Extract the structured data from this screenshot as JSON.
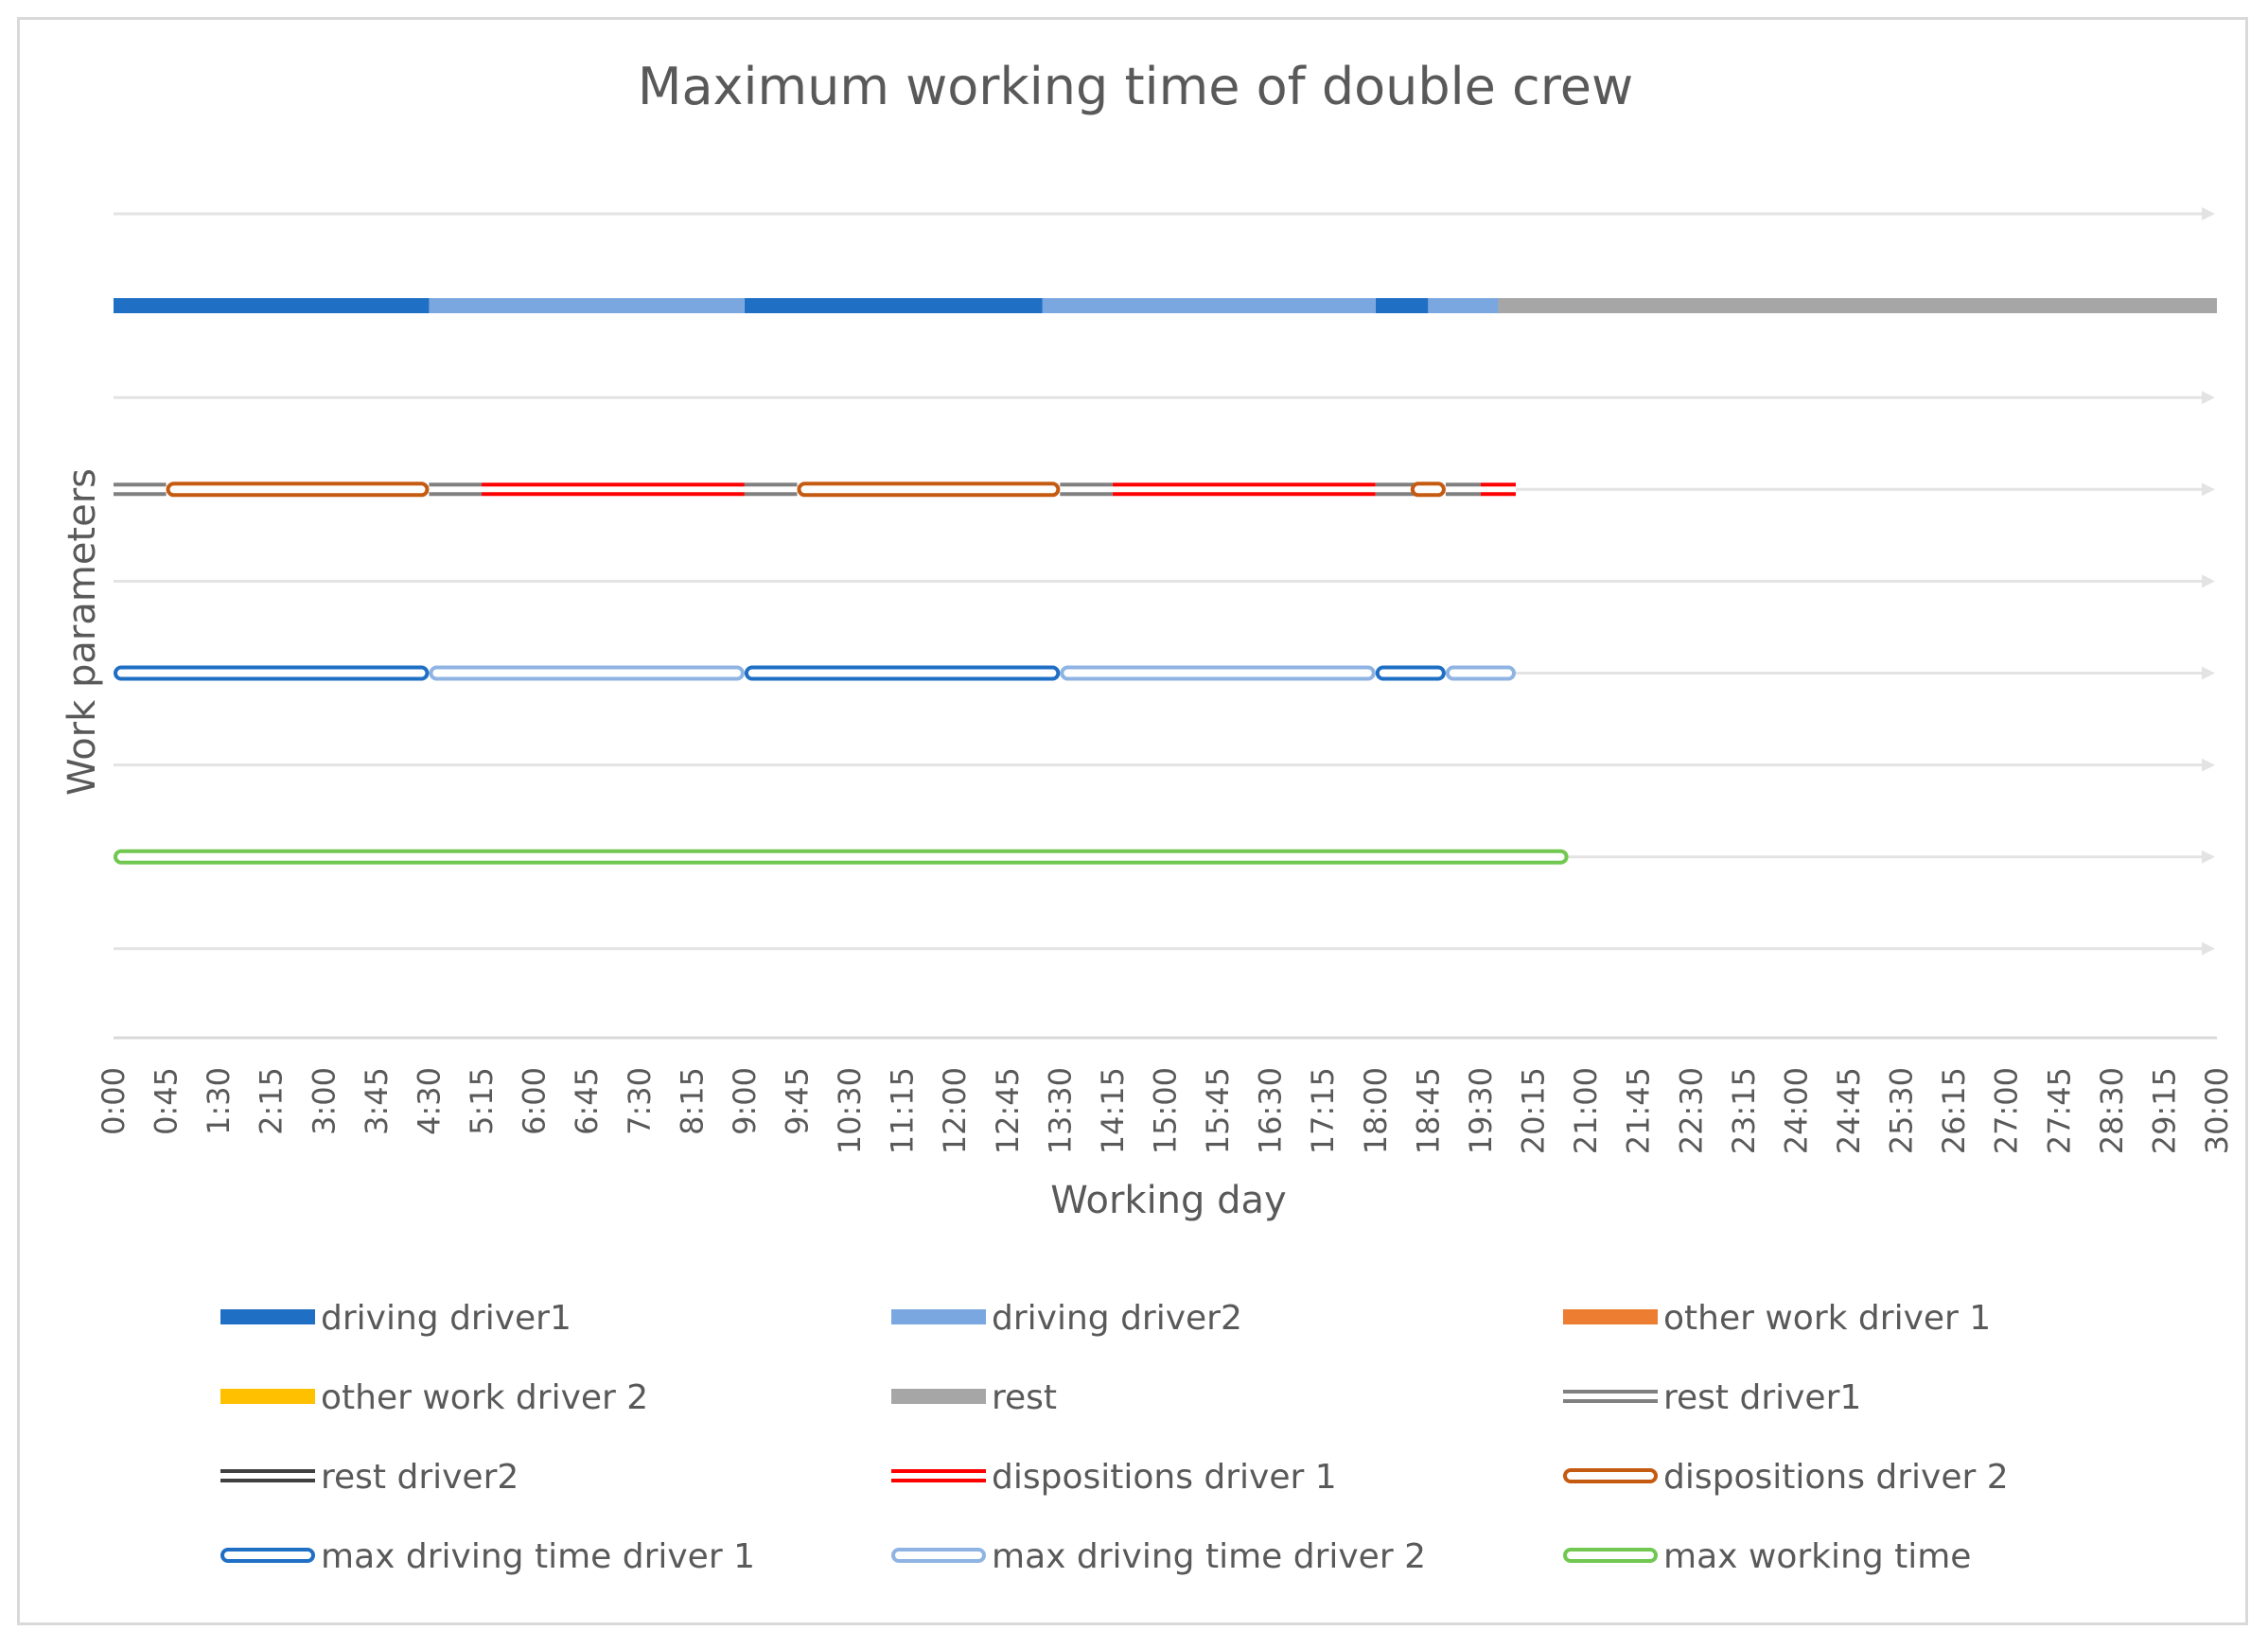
{
  "chart_data": {
    "type": "line",
    "title": "Maximum working time of double crew",
    "xlabel": "Working day",
    "ylabel": "Work parameters",
    "x_ticks": [
      "0:00",
      "0:45",
      "1:30",
      "2:15",
      "3:00",
      "3:45",
      "4:30",
      "5:15",
      "6:00",
      "6:45",
      "7:30",
      "8:15",
      "9:00",
      "9:45",
      "10:30",
      "11:15",
      "12:00",
      "12:45",
      "13:30",
      "14:15",
      "15:00",
      "15:45",
      "16:30",
      "17:15",
      "18:00",
      "18:45",
      "19:30",
      "20:15",
      "21:00",
      "21:45",
      "22:30",
      "23:15",
      "24:00",
      "24:45",
      "25:30",
      "26:15",
      "27:00",
      "27:45",
      "28:30",
      "29:15",
      "30:00"
    ],
    "xlim": [
      "0:00",
      "30:00"
    ],
    "grid": true,
    "legend_position": "bottom",
    "colors": {
      "driving_driver1": "#1f6fc5",
      "driving_driver2": "#7aa7e0",
      "other_work_driver1": "#ed7d31",
      "other_work_driver2": "#ffc000",
      "rest": "#a6a6a6",
      "rest_driver1": "#808080",
      "rest_driver2": "#404040",
      "dispositions_driver1": "#ff0000",
      "dispositions_driver2": "#c55a11",
      "max_driving_driver1": "#1f6fc5",
      "max_driving_driver2": "#8fb4e3",
      "max_working_time": "#70c850",
      "grid": "#e3e3e3"
    },
    "series": [
      {
        "name": "driving driver1",
        "key": "driving_driver1",
        "style": "solid",
        "row": 1,
        "segments": [
          [
            "0:00",
            "4:30"
          ],
          [
            "9:00",
            "13:15"
          ],
          [
            "18:00",
            "18:45"
          ]
        ]
      },
      {
        "name": "driving driver2",
        "key": "driving_driver2",
        "style": "solid",
        "row": 1,
        "segments": [
          [
            "4:30",
            "9:00"
          ],
          [
            "13:15",
            "18:00"
          ],
          [
            "18:45",
            "19:45"
          ]
        ]
      },
      {
        "name": "other work driver 1",
        "key": "other_work_driver1",
        "style": "solid",
        "row": 3,
        "segments": []
      },
      {
        "name": "other work driver 2",
        "key": "other_work_driver2",
        "style": "solid",
        "row": 3,
        "segments": []
      },
      {
        "name": "rest",
        "key": "rest",
        "style": "solid",
        "row": 1,
        "segments": [
          [
            "19:45",
            "30:00"
          ]
        ]
      },
      {
        "name": "rest driver1",
        "key": "rest_driver1",
        "style": "double",
        "row": 3,
        "segments": [
          [
            "0:00",
            "0:45"
          ],
          [
            "4:30",
            "5:15"
          ],
          [
            "9:00",
            "9:45"
          ],
          [
            "13:30",
            "14:15"
          ],
          [
            "18:00",
            "18:45"
          ],
          [
            "19:00",
            "19:45"
          ]
        ]
      },
      {
        "name": "rest driver2",
        "key": "rest_driver2",
        "style": "double",
        "row": 3,
        "segments": []
      },
      {
        "name": "dispositions driver 1",
        "key": "dispositions_driver1",
        "style": "double",
        "row": 3,
        "segments": [
          [
            "5:15",
            "9:00"
          ],
          [
            "14:15",
            "18:00"
          ],
          [
            "19:30",
            "20:00"
          ]
        ]
      },
      {
        "name": "dispositions driver 2",
        "key": "dispositions_driver2",
        "style": "outline",
        "row": 3,
        "segments": [
          [
            "0:45",
            "4:30"
          ],
          [
            "9:45",
            "13:30"
          ],
          [
            "18:30",
            "19:00"
          ]
        ]
      },
      {
        "name": "max driving time driver 1",
        "key": "max_driving_driver1",
        "style": "outline",
        "row": 5,
        "segments": [
          [
            "0:00",
            "4:30"
          ],
          [
            "9:00",
            "13:30"
          ],
          [
            "18:00",
            "19:00"
          ]
        ]
      },
      {
        "name": "max driving time driver 2",
        "key": "max_driving_driver2",
        "style": "outline",
        "row": 5,
        "segments": [
          [
            "4:30",
            "9:00"
          ],
          [
            "13:30",
            "18:00"
          ],
          [
            "19:00",
            "20:00"
          ]
        ]
      },
      {
        "name": "max working time",
        "key": "max_working_time",
        "style": "outline",
        "row": 7,
        "segments": [
          [
            "0:00",
            "20:45"
          ]
        ]
      }
    ]
  }
}
